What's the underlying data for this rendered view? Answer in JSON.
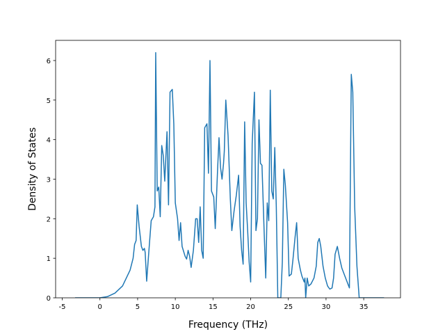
{
  "chart_data": {
    "type": "line",
    "xlabel": "Frequency (THz)",
    "ylabel": "Density of States",
    "xlim": [
      -5.88,
      39.88
    ],
    "ylim": [
      0,
      6.51
    ],
    "xticks": [
      -5,
      0,
      5,
      10,
      15,
      20,
      25,
      30,
      35
    ],
    "yticks": [
      0,
      1,
      2,
      3,
      4,
      5,
      6
    ],
    "series": [
      {
        "color": "#1f77b4",
        "x": [
          -3.3,
          0,
          1,
          2,
          3,
          4,
          4.4,
          4.6,
          4.8,
          4.95,
          5.2,
          5.5,
          5.7,
          5.9,
          6.0,
          6.2,
          6.5,
          6.8,
          7.1,
          7.3,
          7.4,
          7.6,
          7.8,
          8.0,
          8.2,
          8.4,
          8.6,
          8.9,
          9.1,
          9.3,
          9.6,
          9.8,
          10.0,
          10.3,
          10.5,
          10.7,
          10.9,
          11.3,
          11.5,
          11.7,
          11.9,
          12.1,
          12.4,
          12.7,
          12.9,
          13.1,
          13.3,
          13.5,
          13.7,
          13.9,
          14.2,
          14.4,
          14.6,
          14.8,
          15.1,
          15.3,
          15.6,
          15.8,
          16.0,
          16.2,
          16.4,
          16.5,
          16.7,
          17.0,
          17.3,
          17.5,
          17.8,
          18.1,
          18.4,
          18.6,
          18.8,
          19.0,
          19.2,
          19.4,
          19.6,
          19.8,
          20.0,
          20.2,
          20.5,
          20.7,
          20.9,
          21.1,
          21.3,
          21.5,
          21.8,
          22.0,
          22.2,
          22.4,
          22.6,
          22.8,
          23.0,
          23.2,
          23.4,
          23.6,
          24.0,
          24.2,
          24.4,
          24.6,
          24.9,
          25.1,
          25.4,
          25.6,
          25.9,
          26.1,
          26.3,
          26.6,
          26.8,
          27.1,
          27.2,
          27.3,
          27.5,
          27.7,
          28.0,
          28.4,
          28.7,
          28.9,
          29.1,
          29.3,
          29.6,
          29.9,
          30.2,
          30.5,
          30.8,
          31.0,
          31.2,
          31.5,
          31.8,
          32.1,
          32.4,
          32.7,
          33.1,
          33.35,
          33.55,
          33.8,
          34.1,
          34.4,
          37.7
        ],
        "values": [
          0,
          0,
          0.03,
          0.12,
          0.3,
          0.7,
          1.0,
          1.35,
          1.45,
          2.35,
          1.8,
          1.3,
          1.2,
          1.25,
          1.15,
          0.42,
          1.2,
          1.95,
          2.05,
          2.3,
          6.2,
          2.7,
          2.8,
          2.05,
          3.85,
          3.6,
          2.95,
          4.2,
          2.35,
          5.2,
          5.27,
          4.4,
          2.4,
          2.0,
          1.45,
          1.9,
          1.3,
          1.05,
          0.98,
          1.2,
          1.05,
          0.77,
          1.2,
          2.0,
          2.0,
          1.4,
          2.3,
          1.2,
          1.0,
          4.3,
          4.4,
          3.15,
          6.0,
          2.7,
          2.55,
          1.75,
          3.2,
          4.05,
          3.3,
          3.0,
          3.4,
          3.7,
          5.0,
          4.1,
          2.5,
          1.7,
          2.2,
          2.6,
          3.1,
          1.8,
          1.2,
          0.85,
          4.45,
          2.4,
          1.7,
          0.9,
          0.4,
          3.9,
          5.2,
          1.7,
          2.0,
          4.5,
          3.4,
          3.35,
          1.6,
          0.5,
          2.4,
          1.95,
          5.25,
          2.7,
          2.5,
          3.8,
          2.3,
          0,
          0,
          0.9,
          3.25,
          2.85,
          1.9,
          0.55,
          0.6,
          0.95,
          1.55,
          1.9,
          1.0,
          0.7,
          0.55,
          0.4,
          0.5,
          0,
          0.5,
          0.3,
          0.35,
          0.5,
          0.8,
          1.4,
          1.5,
          1.3,
          0.8,
          0.5,
          0.3,
          0.22,
          0.25,
          0.5,
          1.1,
          1.3,
          1.0,
          0.75,
          0.6,
          0.45,
          0.25,
          5.65,
          5.2,
          2.3,
          0.8,
          0,
          0
        ]
      }
    ]
  }
}
